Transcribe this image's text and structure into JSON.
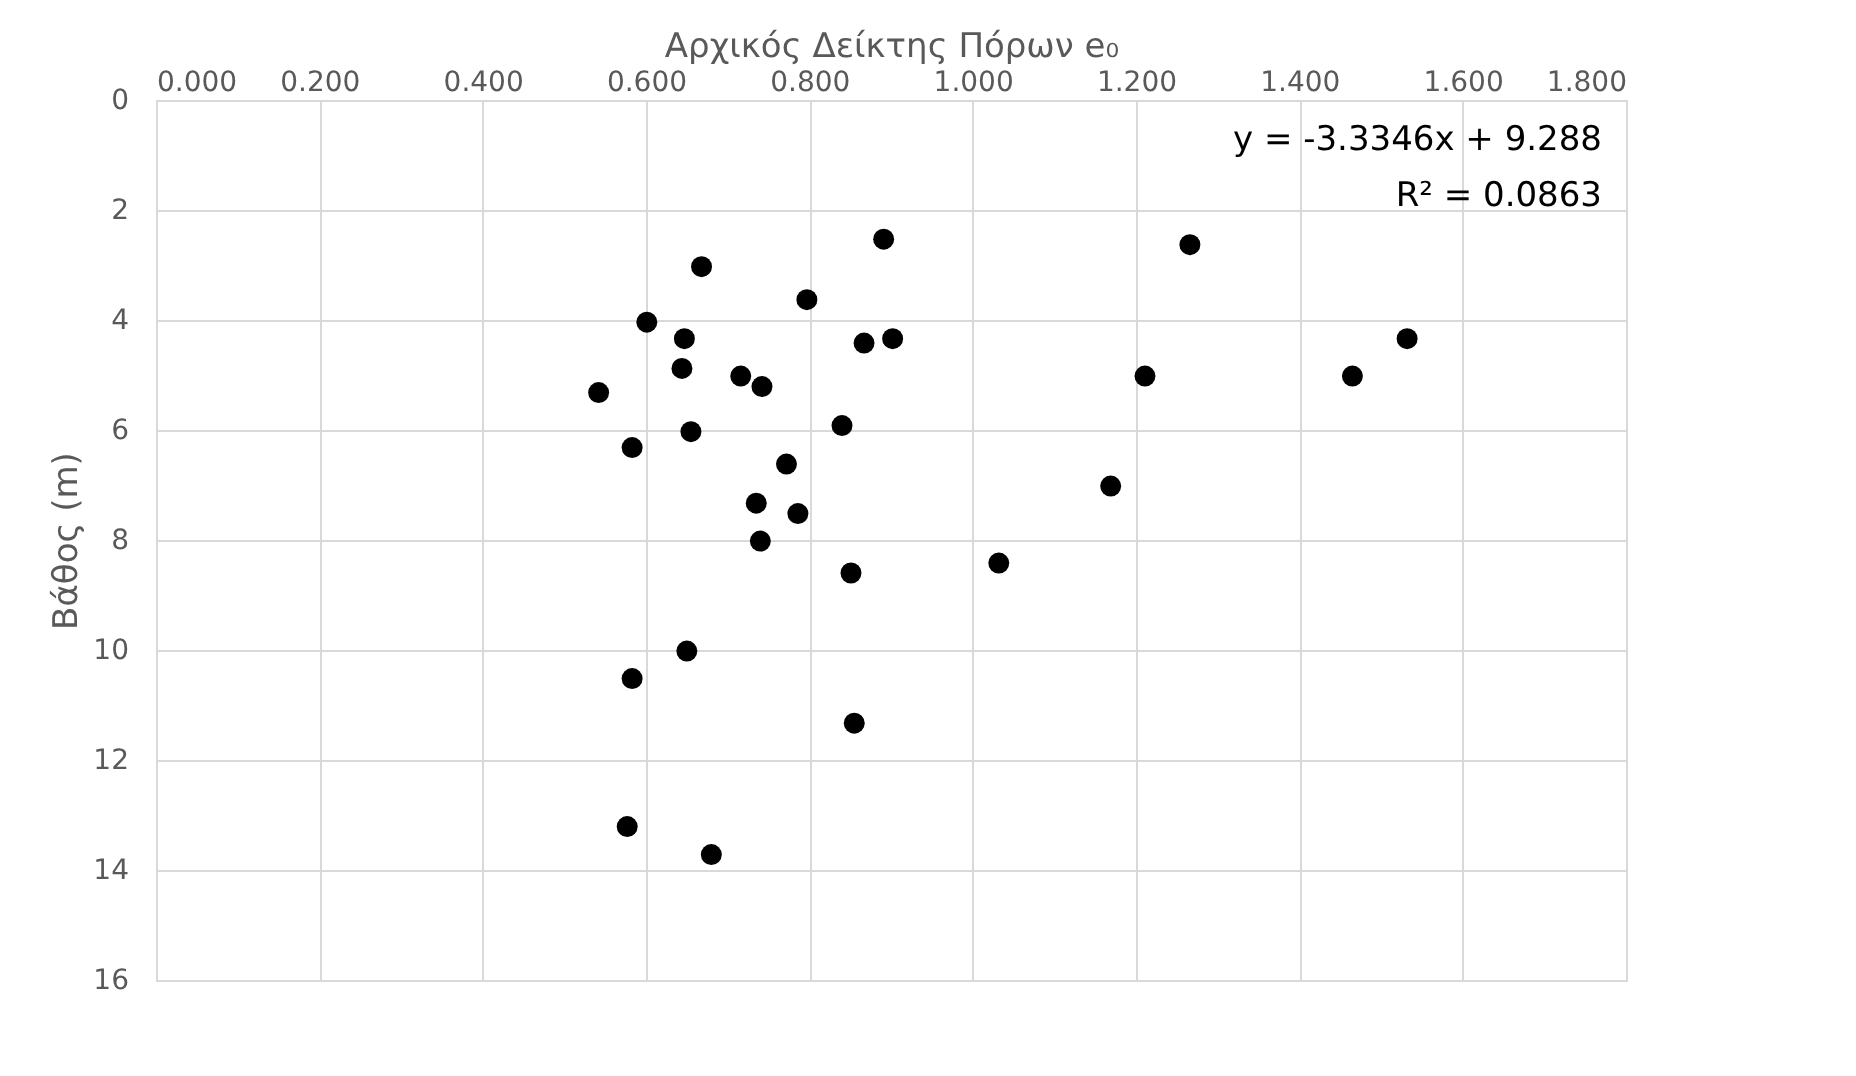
{
  "chart_data": {
    "type": "scatter",
    "xlabel": "Αρχικός Δείκτης Πόρων e₀",
    "ylabel": "Βάθος (m)",
    "x": [
      0.891,
      0.668,
      0.797,
      0.601,
      0.647,
      0.867,
      0.902,
      0.644,
      0.716,
      0.742,
      0.542,
      0.84,
      0.655,
      0.583,
      0.772,
      1.169,
      0.735,
      0.786,
      0.74,
      0.851,
      1.032,
      0.65,
      0.583,
      0.855,
      0.577,
      0.68,
      1.266,
      1.211,
      1.465,
      1.532
    ],
    "series": [
      {
        "color": "#000000",
        "values": [
          2.53,
          3.03,
          3.63,
          4.04,
          4.34,
          4.42,
          4.34,
          4.88,
          5.02,
          5.21,
          5.32,
          5.92,
          6.03,
          6.32,
          6.62,
          7.02,
          7.33,
          7.52,
          8.02,
          8.6,
          8.42,
          10.02,
          10.52,
          11.33,
          13.21,
          13.72,
          2.63,
          5.02,
          5.02,
          4.34
        ]
      }
    ],
    "xlim": [
      0,
      1.8
    ],
    "xticks": [
      {
        "value": 0,
        "label": "0.000"
      },
      {
        "value": 0.2,
        "label": "0.200"
      },
      {
        "value": 0.4,
        "label": "0.400"
      },
      {
        "value": 0.6,
        "label": "0.600"
      },
      {
        "value": 0.8,
        "label": "0.800"
      },
      {
        "value": 1.0,
        "label": "1.000"
      },
      {
        "value": 1.2,
        "label": "1.200"
      },
      {
        "value": 1.4,
        "label": "1.400"
      },
      {
        "value": 1.6,
        "label": "1.600"
      },
      {
        "value": 1.8,
        "label": "1.800"
      }
    ],
    "ylim": [
      16,
      0
    ],
    "yticks": [
      0,
      2,
      4,
      6,
      8,
      10,
      12,
      14,
      16
    ],
    "grid": true,
    "marker": "circle",
    "annotations": [
      "y = -3.3346x + 9.288",
      "R² = 0.0863"
    ]
  }
}
